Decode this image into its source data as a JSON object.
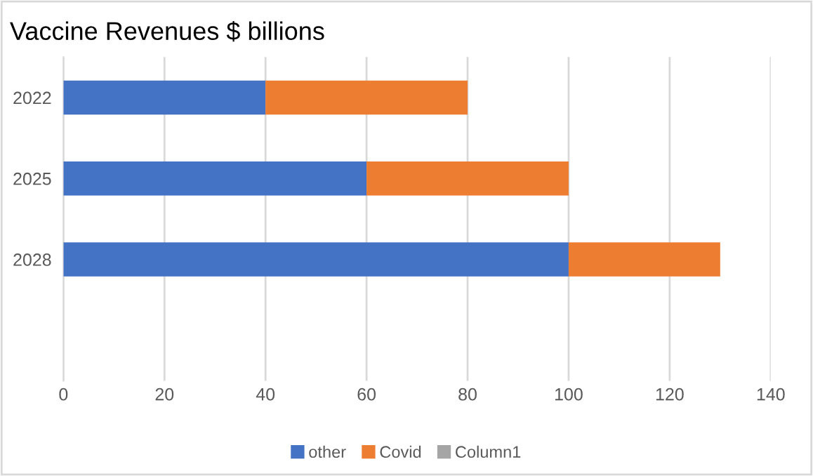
{
  "chart_data": {
    "type": "bar",
    "title": "Vaccine Revenues $ billions",
    "orientation": "horizontal",
    "stacked": true,
    "categories": [
      "2022",
      "2025",
      "2028",
      null
    ],
    "series": [
      {
        "name": "other",
        "color": "#4472c4",
        "values": [
          40,
          60,
          100,
          null
        ]
      },
      {
        "name": "Covid",
        "color": "#ed7d31",
        "values": [
          40,
          40,
          30,
          null
        ]
      },
      {
        "name": "Column1",
        "color": "#a5a5a5",
        "values": [
          null,
          null,
          null,
          null
        ]
      }
    ],
    "xlim": [
      0,
      140
    ],
    "xticks": [
      0,
      20,
      40,
      60,
      80,
      100,
      120,
      140
    ],
    "grid": "x",
    "legend": "bottom"
  }
}
